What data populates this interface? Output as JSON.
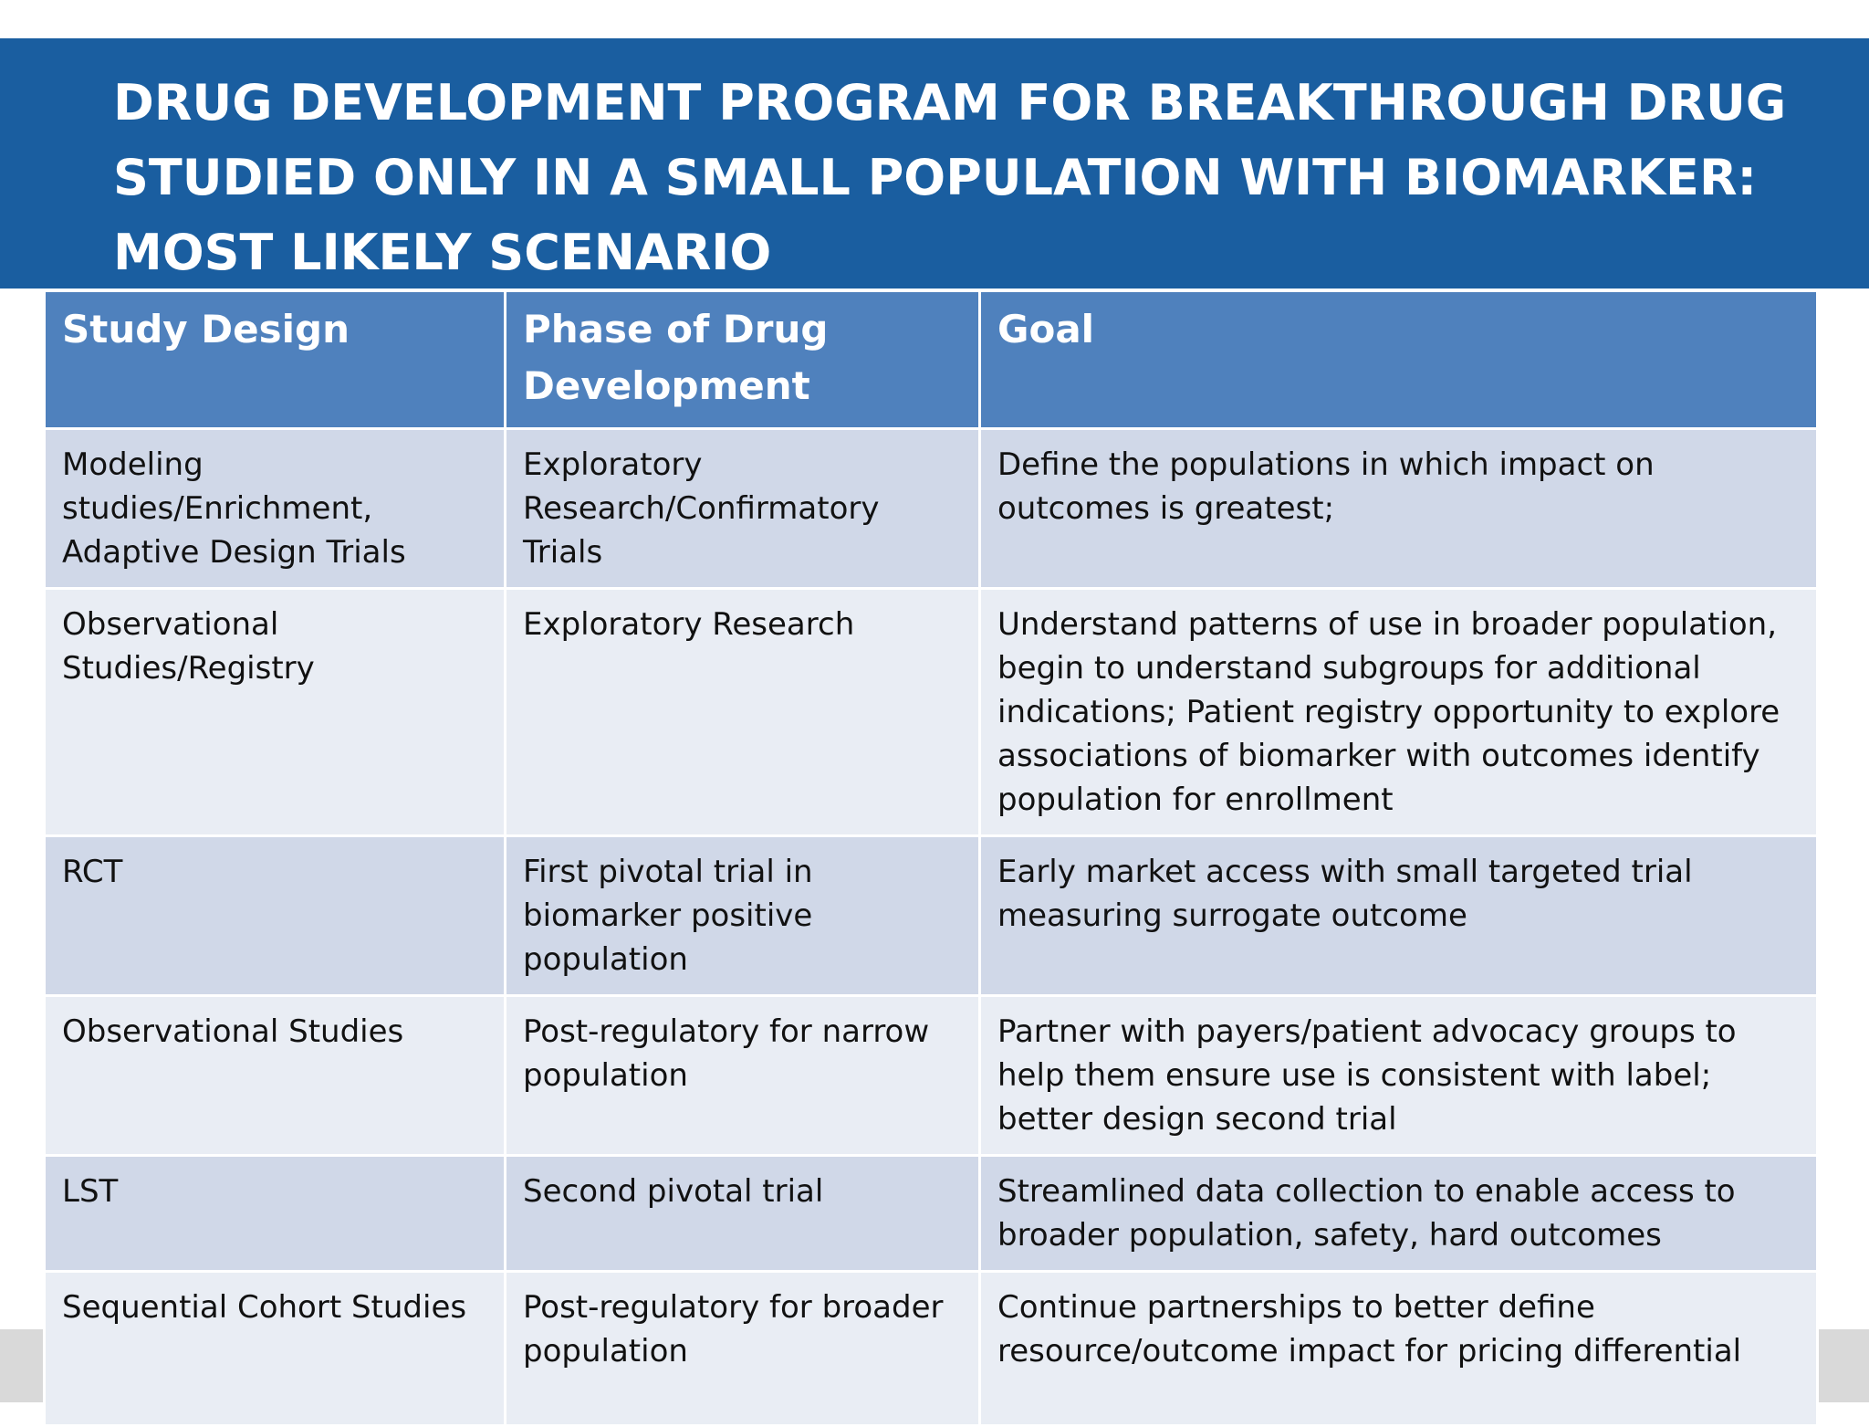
{
  "title_lines": [
    "DRUG DEVELOPMENT PROGRAM FOR BREAKTHROUGH DRUG",
    "STUDIED ONLY IN A SMALL POPULATION WITH BIOMARKER:",
    "MOST LIKELY SCENARIO"
  ],
  "table": {
    "header": [
      "Study Design",
      "Phase of Drug Development",
      "Goal"
    ],
    "rows": [
      [
        "Modeling studies/Enrichment, Adaptive Design Trials",
        "Exploratory Research/Confirmatory Trials",
        "Define the populations in which impact on outcomes is greatest;"
      ],
      [
        "Observational Studies/Registry",
        "Exploratory Research",
        "Understand  patterns of use in broader population, begin to understand subgroups for additional indications;  Patient registry opportunity to explore associations of biomarker with outcomes identify population for enrollment"
      ],
      [
        "RCT",
        "First pivotal trial in biomarker positive population",
        "Early market access with small targeted trial measuring surrogate outcome"
      ],
      [
        "Observational Studies",
        "Post-regulatory for narrow population",
        "Partner with payers/patient advocacy groups  to help them ensure use is consistent with label; better design second trial"
      ],
      [
        "LST",
        "Second pivotal trial",
        "Streamlined data collection to enable access to broader population, safety, hard outcomes"
      ],
      [
        "Sequential Cohort Studies",
        "Post-regulatory for broader population",
        "Continue partnerships to better define resource/outcome impact for pricing differential"
      ]
    ]
  }
}
